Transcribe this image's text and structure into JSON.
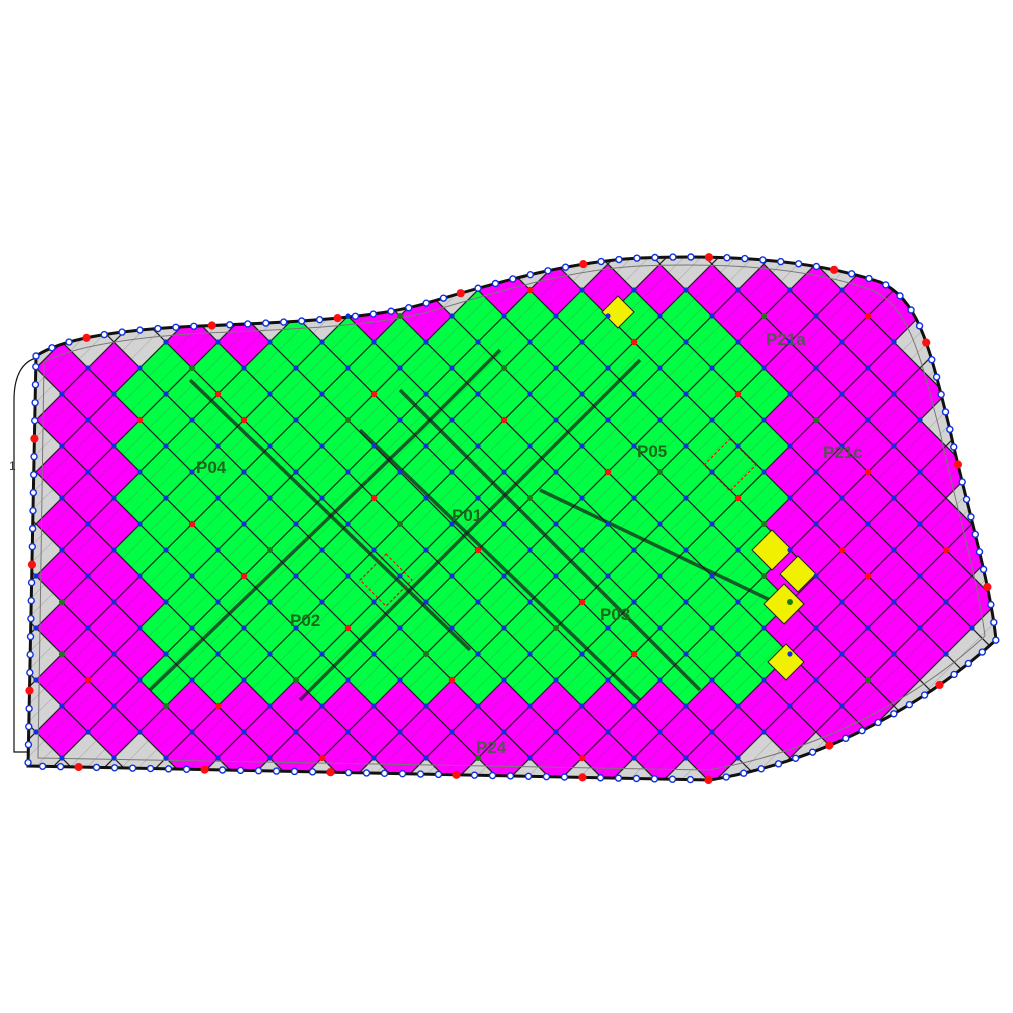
{
  "diagram": {
    "panels": [
      {
        "id": "P01",
        "zone": "inner"
      },
      {
        "id": "P02",
        "zone": "inner"
      },
      {
        "id": "P03",
        "zone": "inner"
      },
      {
        "id": "P04",
        "zone": "inner"
      },
      {
        "id": "P05",
        "zone": "inner"
      },
      {
        "id": "P21a",
        "zone": "edge"
      },
      {
        "id": "P21c",
        "zone": "edge"
      },
      {
        "id": "P24",
        "zone": "edge"
      }
    ],
    "colors": {
      "inner_fill": "#00ff44",
      "mid_fill": "#ff00ff",
      "edge_fill": "#d3d3d3",
      "highlight_fill": "#f0f000",
      "grid_line": "#222222",
      "seam_line": "#1a1a1a",
      "outline": "#111111",
      "node_regular": "#1030e0",
      "node_red": "#ff1010",
      "node_green": "#1a7a1a",
      "label_inner": "#1b6a1b",
      "label_edge": "#555555"
    },
    "side_marker": "1"
  }
}
